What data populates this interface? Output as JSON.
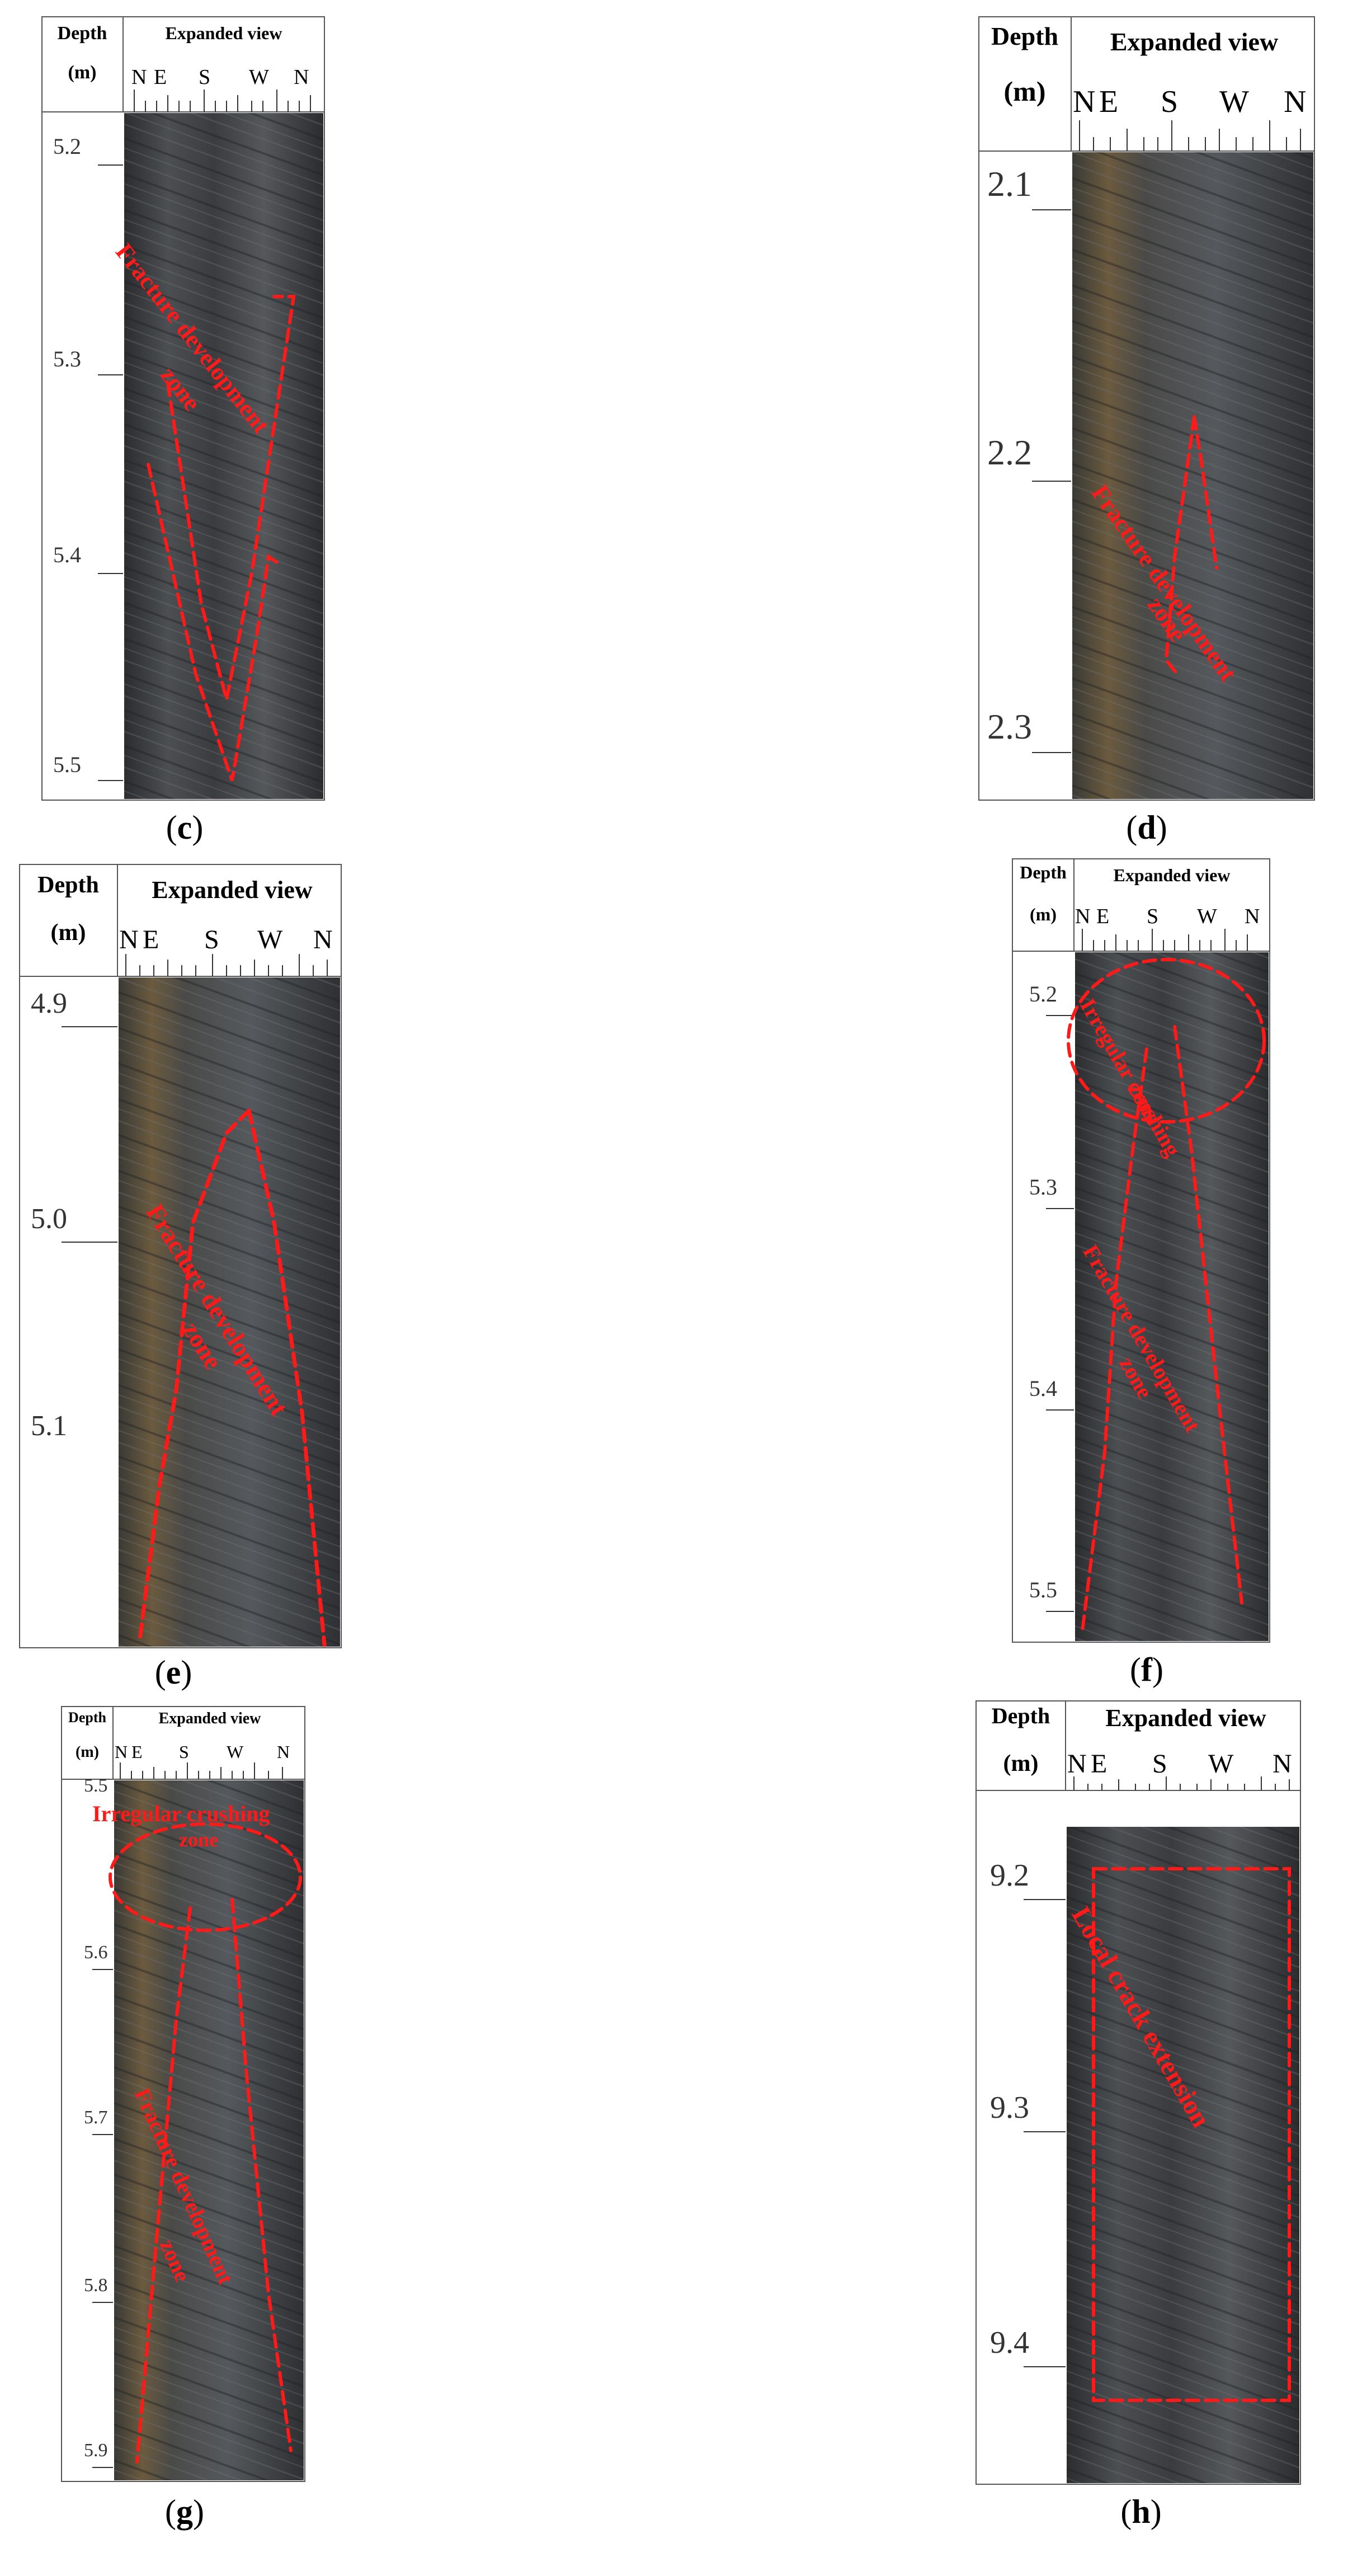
{
  "panels": {
    "c": {
      "caption_open": "(",
      "caption_letter": "c",
      "caption_close": ")",
      "header": {
        "depth": "Depth",
        "unit": "(m)",
        "view": "Expanded view"
      },
      "directions": [
        "N",
        "E",
        "S",
        "W",
        "N"
      ],
      "depths": [
        "5.2",
        "5.3",
        "5.4",
        "5.5"
      ],
      "annotations": [
        "Fracture development",
        "zone"
      ]
    },
    "d": {
      "caption_open": "(",
      "caption_letter": "d",
      "caption_close": ")",
      "header": {
        "depth": "Depth",
        "unit": "(m)",
        "view": "Expanded view"
      },
      "directions": [
        "N",
        "E",
        "S",
        "W",
        "N"
      ],
      "depths": [
        "2.1",
        "2.2",
        "2.3"
      ],
      "annotations": [
        "Fracture development",
        "zone"
      ]
    },
    "e": {
      "caption_open": "(",
      "caption_letter": "e",
      "caption_close": ")",
      "header": {
        "depth": "Depth",
        "unit": "(m)",
        "view": "Expanded view"
      },
      "directions": [
        "N",
        "E",
        "S",
        "W",
        "N"
      ],
      "depths": [
        "4.9",
        "5.0",
        "5.1"
      ],
      "annotations": [
        "Fracture development",
        "zone"
      ]
    },
    "f": {
      "caption_open": "(",
      "caption_letter": "f",
      "caption_close": ")",
      "header": {
        "depth": "Depth",
        "unit": "(m)",
        "view": "Expanded view"
      },
      "directions": [
        "N",
        "E",
        "S",
        "W",
        "N"
      ],
      "depths": [
        "5.2",
        "5.3",
        "5.4",
        "5.5"
      ],
      "annotations": [
        "Irregular crushing",
        "zone",
        "Fracture development",
        "zone"
      ]
    },
    "g": {
      "caption_open": "(",
      "caption_letter": "g",
      "caption_close": ")",
      "header": {
        "depth": "Depth",
        "unit": "(m)",
        "view": "Expanded view"
      },
      "directions": [
        "N",
        "E",
        "S",
        "W",
        "N"
      ],
      "depths": [
        "5.5",
        "5.6",
        "5.7",
        "5.8",
        "5.9"
      ],
      "annotations": [
        "Irregular crushing",
        "zone",
        "Fracture development",
        "zone"
      ]
    },
    "h": {
      "caption_open": "(",
      "caption_letter": "h",
      "caption_close": ")",
      "header": {
        "depth": "Depth",
        "unit": "(m)",
        "view": "Expanded view"
      },
      "directions": [
        "N",
        "E",
        "S",
        "W",
        "N"
      ],
      "depths": [
        "9.2",
        "9.3",
        "9.4"
      ],
      "annotations": [
        "Local crack extension"
      ]
    }
  },
  "colors": {
    "annotation": "#ff1a1a",
    "rock": "#3a3d40"
  }
}
